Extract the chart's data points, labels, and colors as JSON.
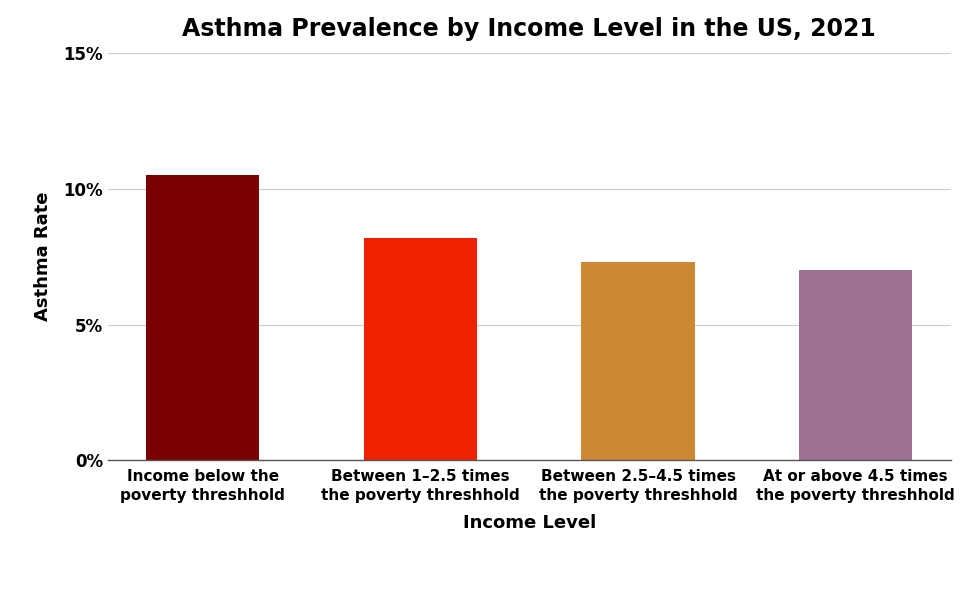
{
  "title": "Asthma Prevalence by Income Level in the US, 2021",
  "xlabel": "Income Level",
  "ylabel": "Asthma Rate",
  "categories": [
    "Income below the\npoverty threshhold",
    "Between 1–2.5 times\nthe poverty threshhold",
    "Between 2.5–4.5 times\nthe poverty threshhold",
    "At or above 4.5 times\nthe poverty threshhold"
  ],
  "values": [
    10.5,
    8.2,
    7.3,
    7.0
  ],
  "bar_colors": [
    "#7B0000",
    "#EE2200",
    "#CC8833",
    "#A07090"
  ],
  "ylim": [
    0,
    15
  ],
  "yticks": [
    0,
    5,
    10,
    15
  ],
  "ytick_labels": [
    "0%",
    "5%",
    "10%",
    "15%"
  ],
  "background_color": "#FFFFFF",
  "title_fontsize": 17,
  "axis_label_fontsize": 13,
  "ytick_fontsize": 12,
  "xtick_fontsize": 11,
  "bar_width": 0.52
}
